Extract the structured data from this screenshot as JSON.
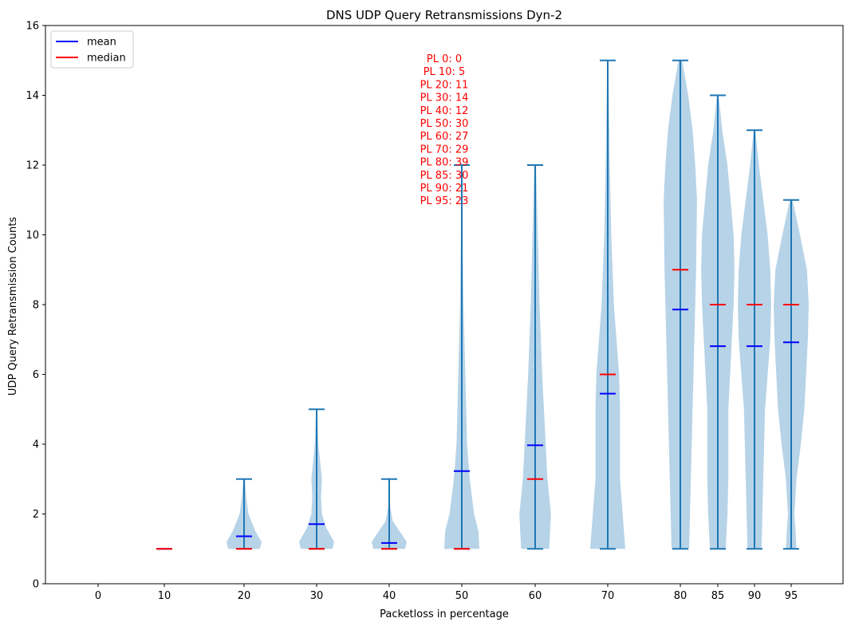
{
  "chart_data": {
    "type": "violin",
    "title": "DNS UDP Query Retransmissions Dyn-2",
    "xlabel": "Packetloss in percentage",
    "ylabel": "UDP Query Retransmission Counts",
    "ylim": [
      0,
      16
    ],
    "yticks": [
      0,
      2,
      4,
      6,
      8,
      10,
      12,
      14,
      16
    ],
    "x_ticks": [
      0,
      10,
      20,
      30,
      40,
      50,
      60,
      70,
      80,
      85,
      90,
      95
    ],
    "x_tick_labels": [
      "0",
      "10",
      "20",
      "30",
      "40",
      "50",
      "60",
      "70",
      "80",
      "85",
      "90",
      "95"
    ],
    "legend": {
      "placement": "top-left",
      "entries": [
        {
          "label": "mean",
          "color": "#0000ff"
        },
        {
          "label": "median",
          "color": "#ff0000"
        }
      ]
    },
    "colors": {
      "violin_fill": "#9ec4e0",
      "whisker": "#1f77b4",
      "mean": "#0000ff",
      "median": "#ff0000",
      "annotation": "#ff0000"
    },
    "annotation_lines": [
      "PL 0: 0",
      "PL 10: 5",
      "PL 20: 11",
      "PL 30: 14",
      "PL 40: 12",
      "PL 50: 30",
      "PL 60: 27",
      "PL 70: 29",
      "PL 80: 39",
      "PL 85: 30",
      "PL 90: 21",
      "PL 95: 23"
    ],
    "series": [
      {
        "x": 10,
        "min": 1,
        "max": 1,
        "mean": 1.0,
        "median": 1,
        "density": []
      },
      {
        "x": 20,
        "min": 1,
        "max": 3,
        "mean": 1.36,
        "median": 1,
        "density": [
          [
            1.0,
            0.9
          ],
          [
            1.2,
            1.0
          ],
          [
            1.5,
            0.65
          ],
          [
            2.0,
            0.25
          ],
          [
            2.5,
            0.12
          ],
          [
            3.0,
            0.05
          ]
        ]
      },
      {
        "x": 30,
        "min": 1,
        "max": 5,
        "mean": 1.71,
        "median": 1,
        "density": [
          [
            1.0,
            0.9
          ],
          [
            1.2,
            1.0
          ],
          [
            1.6,
            0.55
          ],
          [
            2.0,
            0.3
          ],
          [
            2.5,
            0.25
          ],
          [
            3.0,
            0.3
          ],
          [
            3.5,
            0.2
          ],
          [
            4.0,
            0.1
          ],
          [
            5.0,
            0.03
          ]
        ]
      },
      {
        "x": 40,
        "min": 1,
        "max": 3,
        "mean": 1.17,
        "median": 1,
        "density": [
          [
            1.0,
            0.9
          ],
          [
            1.2,
            1.0
          ],
          [
            1.5,
            0.6
          ],
          [
            1.8,
            0.2
          ],
          [
            2.2,
            0.06
          ],
          [
            3.0,
            0.02
          ]
        ]
      },
      {
        "x": 50,
        "min": 1,
        "max": 12,
        "mean": 3.23,
        "median": 1,
        "density": [
          [
            1.0,
            1.0
          ],
          [
            1.5,
            0.95
          ],
          [
            2.0,
            0.7
          ],
          [
            3.0,
            0.45
          ],
          [
            4.0,
            0.3
          ],
          [
            5.0,
            0.25
          ],
          [
            6.0,
            0.2
          ],
          [
            7.0,
            0.15
          ],
          [
            8.0,
            0.1
          ],
          [
            10.0,
            0.05
          ],
          [
            12.0,
            0.02
          ]
        ]
      },
      {
        "x": 60,
        "min": 1,
        "max": 12,
        "mean": 3.97,
        "median": 3,
        "density": [
          [
            1.0,
            0.8
          ],
          [
            2.0,
            0.9
          ],
          [
            3.0,
            0.7
          ],
          [
            4.0,
            0.6
          ],
          [
            5.0,
            0.5
          ],
          [
            6.0,
            0.4
          ],
          [
            8.0,
            0.25
          ],
          [
            10.0,
            0.15
          ],
          [
            11.0,
            0.1
          ],
          [
            12.0,
            0.05
          ]
        ]
      },
      {
        "x": 70,
        "min": 1,
        "max": 15,
        "mean": 5.45,
        "median": 6,
        "density": [
          [
            1.0,
            1.0
          ],
          [
            2.0,
            0.85
          ],
          [
            3.0,
            0.7
          ],
          [
            5.0,
            0.7
          ],
          [
            6.0,
            0.65
          ],
          [
            7.0,
            0.5
          ],
          [
            8.0,
            0.35
          ],
          [
            10.0,
            0.2
          ],
          [
            12.0,
            0.12
          ],
          [
            14.0,
            0.06
          ],
          [
            15.0,
            0.03
          ]
        ]
      },
      {
        "x": 80,
        "min": 1,
        "max": 15,
        "mean": 7.86,
        "median": 9,
        "density": [
          [
            1.0,
            0.5
          ],
          [
            3.0,
            0.6
          ],
          [
            5.0,
            0.7
          ],
          [
            7.0,
            0.8
          ],
          [
            9.0,
            0.9
          ],
          [
            11.0,
            0.95
          ],
          [
            12.0,
            0.85
          ],
          [
            13.0,
            0.7
          ],
          [
            14.0,
            0.45
          ],
          [
            15.0,
            0.1
          ]
        ]
      },
      {
        "x": 85,
        "min": 1,
        "max": 14,
        "mean": 6.81,
        "median": 8,
        "density": [
          [
            1.0,
            0.45
          ],
          [
            2.0,
            0.55
          ],
          [
            3.0,
            0.6
          ],
          [
            5.0,
            0.6
          ],
          [
            6.0,
            0.7
          ],
          [
            8.0,
            0.9
          ],
          [
            9.0,
            0.95
          ],
          [
            10.0,
            0.9
          ],
          [
            12.0,
            0.55
          ],
          [
            13.0,
            0.25
          ],
          [
            14.0,
            0.05
          ]
        ]
      },
      {
        "x": 90,
        "min": 1,
        "max": 13,
        "mean": 6.81,
        "median": 8,
        "density": [
          [
            1.0,
            0.4
          ],
          [
            2.0,
            0.45
          ],
          [
            3.0,
            0.5
          ],
          [
            5.0,
            0.6
          ],
          [
            6.0,
            0.75
          ],
          [
            7.0,
            0.9
          ],
          [
            8.0,
            0.95
          ],
          [
            9.0,
            0.9
          ],
          [
            10.0,
            0.75
          ],
          [
            11.0,
            0.5
          ],
          [
            12.0,
            0.25
          ],
          [
            13.0,
            0.05
          ]
        ]
      },
      {
        "x": 95,
        "min": 1,
        "max": 11,
        "mean": 6.92,
        "median": 8,
        "density": [
          [
            1.0,
            0.3
          ],
          [
            1.5,
            0.25
          ],
          [
            2.0,
            0.18
          ],
          [
            3.0,
            0.3
          ],
          [
            4.0,
            0.55
          ],
          [
            5.0,
            0.75
          ],
          [
            6.0,
            0.85
          ],
          [
            7.0,
            0.95
          ],
          [
            8.0,
            1.0
          ],
          [
            9.0,
            0.9
          ],
          [
            10.0,
            0.5
          ],
          [
            11.0,
            0.08
          ]
        ]
      }
    ]
  }
}
